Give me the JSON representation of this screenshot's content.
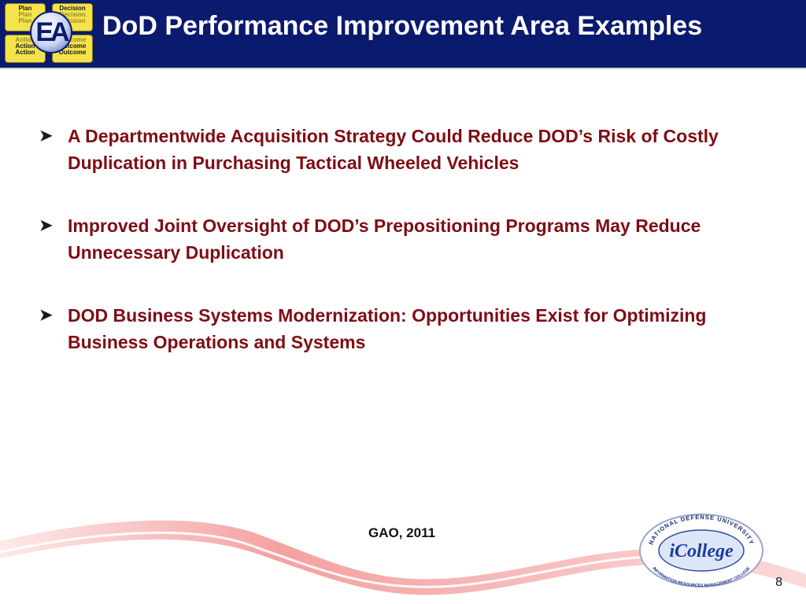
{
  "header": {
    "title": "DoD Performance Improvement Area Examples",
    "logo": {
      "tile_plan": [
        "Plan",
        "Plan",
        "Plan"
      ],
      "tile_decision": [
        "Decision",
        "Decision",
        "Decision"
      ],
      "tile_action": [
        "Action",
        "Action",
        "Action"
      ],
      "tile_outcome": [
        "Outcome",
        "Outcome",
        "Outcome"
      ],
      "center_text": "EA"
    }
  },
  "bullets": [
    {
      "text": "A Departmentwide Acquisition Strategy Could Reduce DOD’s Risk of Costly Duplication in Purchasing Tactical Wheeled Vehicles"
    },
    {
      "text": "Improved Joint Oversight of DOD’s Prepositioning Programs May Reduce Unnecessary Duplication"
    },
    {
      "text": "DOD Business Systems Modernization: Opportunities Exist for Optimizing Business Operations and Systems"
    }
  ],
  "bullet_icon": "arrowhead-bullet-icon",
  "source": "GAO, 2011",
  "footer_logo": {
    "top_arc": "NATIONAL DEFENSE UNIVERSITY",
    "name": "iCollege",
    "bottom_arc": "INFORMATION RESOURCES MANAGEMENT COLLEGE"
  },
  "page_number": "8",
  "colors": {
    "header_bg": "#0a1a6e",
    "bullet_text": "#7f0d14",
    "swoosh": "#f08a8a"
  }
}
